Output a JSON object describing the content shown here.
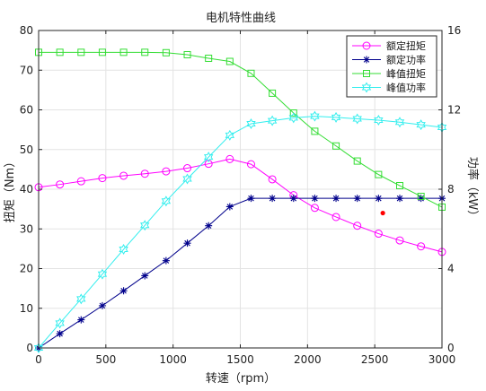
{
  "chart_data": {
    "type": "line",
    "title": "电机特性曲线",
    "xlabel": "转速（rpm）",
    "ylabel_left": "扭矩（Nm）",
    "ylabel_right": "功率（kW）",
    "xlim": [
      0,
      3000
    ],
    "ylim_left": [
      0,
      80
    ],
    "ylim_right": [
      0,
      16
    ],
    "x_ticks": [
      "0",
      "500",
      "1000",
      "1500",
      "2000",
      "2500",
      "3000"
    ],
    "y_ticks_left": [
      "0",
      "10",
      "20",
      "30",
      "40",
      "50",
      "60",
      "70",
      "80"
    ],
    "y_ticks_right": [
      "0",
      "4",
      "8",
      "12",
      "16"
    ],
    "grid": true,
    "legend_position": "top-right",
    "series": [
      {
        "name": "额定扭矩",
        "axis": "left",
        "color": "#ff00ff",
        "marker": "circle",
        "x": [
          0,
          158,
          316,
          474,
          632,
          790,
          948,
          1106,
          1264,
          1422,
          1580,
          1738,
          1896,
          2054,
          2212,
          2370,
          2528,
          2686,
          2844,
          3000
        ],
        "y": [
          40.5,
          41.2,
          42.0,
          42.8,
          43.4,
          43.9,
          44.5,
          45.3,
          46.4,
          47.6,
          46.3,
          42.5,
          38.5,
          35.3,
          33.0,
          30.8,
          28.8,
          27.1,
          25.6,
          24.2
        ]
      },
      {
        "name": "额定功率",
        "axis": "right",
        "color": "#00008b",
        "marker": "star",
        "x": [
          0,
          158,
          316,
          474,
          632,
          790,
          948,
          1106,
          1264,
          1422,
          1580,
          1738,
          1896,
          2054,
          2212,
          2370,
          2528,
          2686,
          2844,
          3000
        ],
        "y": [
          0,
          0.72,
          1.42,
          2.13,
          2.88,
          3.64,
          4.4,
          5.28,
          6.16,
          7.12,
          7.54,
          7.54,
          7.54,
          7.54,
          7.54,
          7.54,
          7.54,
          7.54,
          7.54,
          7.54
        ]
      },
      {
        "name": "峰值扭矩",
        "axis": "left",
        "color": "#33dd33",
        "marker": "square",
        "x": [
          0,
          158,
          316,
          474,
          632,
          790,
          948,
          1106,
          1264,
          1422,
          1580,
          1738,
          1896,
          2054,
          2212,
          2370,
          2528,
          2686,
          2844,
          3000
        ],
        "y": [
          74.5,
          74.5,
          74.5,
          74.5,
          74.5,
          74.5,
          74.4,
          73.9,
          73.0,
          72.2,
          69.2,
          64.2,
          59.2,
          54.6,
          50.9,
          47.1,
          43.7,
          40.9,
          38.2,
          35.5
        ]
      },
      {
        "name": "峰值功率",
        "axis": "right",
        "color": "#33eeee",
        "marker": "hexagram",
        "x": [
          0,
          158,
          316,
          474,
          632,
          790,
          948,
          1106,
          1264,
          1422,
          1580,
          1738,
          1896,
          2054,
          2212,
          2370,
          2528,
          2686,
          2844,
          3000
        ],
        "y": [
          0,
          1.25,
          2.47,
          3.72,
          4.97,
          6.18,
          7.4,
          8.52,
          9.62,
          10.72,
          11.3,
          11.45,
          11.6,
          11.68,
          11.62,
          11.55,
          11.48,
          11.38,
          11.25,
          11.12
        ]
      }
    ],
    "extra_points": [
      {
        "axis": "left",
        "x": 2560,
        "y": 34.0,
        "color": "#ff0000"
      }
    ]
  }
}
